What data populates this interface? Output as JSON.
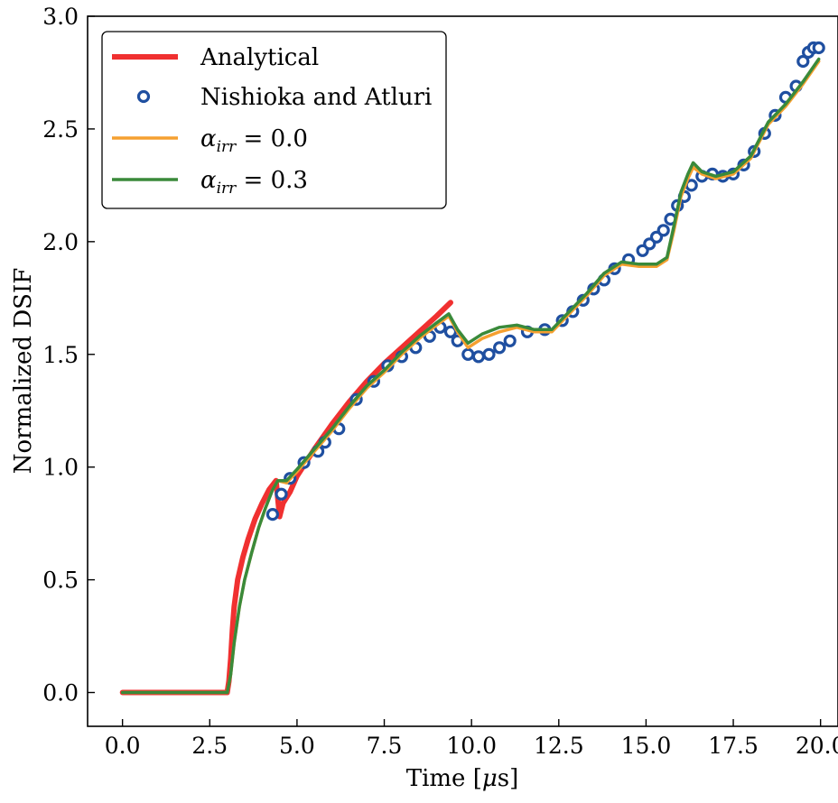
{
  "chart_data": {
    "type": "line",
    "xlabel": "Time [μs]",
    "ylabel": "Normalized DSIF",
    "xlim": [
      -1.0,
      20.5
    ],
    "ylim": [
      -0.15,
      3.0
    ],
    "xticks": [
      "0.0",
      "2.5",
      "5.0",
      "7.5",
      "10.0",
      "12.5",
      "15.0",
      "17.5",
      "20.0"
    ],
    "yticks": [
      "0.0",
      "0.5",
      "1.0",
      "1.5",
      "2.0",
      "2.5",
      "3.0"
    ],
    "legend_position": "top-left",
    "grid": false,
    "series": [
      {
        "name": "Analytical",
        "kind": "line",
        "color": "#f03030",
        "x": [
          0.0,
          3.0,
          3.05,
          3.1,
          3.15,
          3.2,
          3.3,
          3.45,
          3.6,
          3.8,
          4.0,
          4.2,
          4.4,
          4.5,
          4.6,
          4.8,
          5.0,
          5.5,
          6.0,
          6.5,
          7.0,
          7.5,
          8.0,
          8.5,
          9.0,
          9.4
        ],
        "y": [
          0.0,
          0.0,
          0.05,
          0.15,
          0.28,
          0.38,
          0.5,
          0.6,
          0.68,
          0.77,
          0.84,
          0.9,
          0.94,
          0.78,
          0.84,
          0.89,
          0.96,
          1.08,
          1.19,
          1.29,
          1.38,
          1.46,
          1.53,
          1.6,
          1.67,
          1.73
        ]
      },
      {
        "name": "Nishioka and Atluri",
        "kind": "markers",
        "color": "#1f4fa0",
        "x": [
          4.3,
          4.55,
          4.8,
          5.2,
          5.6,
          5.8,
          6.2,
          6.7,
          7.2,
          7.6,
          8.0,
          8.4,
          8.8,
          9.1,
          9.4,
          9.6,
          9.9,
          10.2,
          10.5,
          10.8,
          11.1,
          11.6,
          12.1,
          12.6,
          12.9,
          13.2,
          13.5,
          13.8,
          14.1,
          14.5,
          14.9,
          15.1,
          15.3,
          15.5,
          15.7,
          15.9,
          16.1,
          16.3,
          16.6,
          16.9,
          17.2,
          17.5,
          17.8,
          18.1,
          18.4,
          18.7,
          19.0,
          19.3,
          19.5,
          19.65,
          19.8,
          19.95
        ],
        "y": [
          0.79,
          0.88,
          0.95,
          1.02,
          1.07,
          1.11,
          1.17,
          1.3,
          1.38,
          1.45,
          1.49,
          1.53,
          1.58,
          1.62,
          1.6,
          1.56,
          1.5,
          1.49,
          1.5,
          1.53,
          1.56,
          1.6,
          1.61,
          1.65,
          1.69,
          1.74,
          1.79,
          1.83,
          1.88,
          1.92,
          1.96,
          1.99,
          2.02,
          2.05,
          2.1,
          2.16,
          2.2,
          2.25,
          2.29,
          2.3,
          2.29,
          2.3,
          2.34,
          2.4,
          2.48,
          2.56,
          2.64,
          2.69,
          2.8,
          2.84,
          2.86,
          2.86
        ]
      },
      {
        "name": "α_irr = 0.0",
        "kind": "line",
        "color": "#f5a030",
        "x": [
          0.0,
          3.0,
          3.1,
          3.2,
          3.35,
          3.5,
          3.7,
          3.9,
          4.1,
          4.3,
          4.45,
          4.7,
          5.0,
          5.5,
          6.0,
          6.5,
          7.0,
          7.5,
          8.0,
          8.5,
          9.0,
          9.35,
          9.6,
          9.9,
          10.3,
          10.8,
          11.3,
          11.8,
          12.3,
          12.8,
          13.3,
          13.8,
          14.3,
          14.8,
          15.3,
          15.6,
          15.8,
          16.0,
          16.2,
          16.35,
          16.6,
          17.0,
          17.5,
          18.0,
          18.5,
          19.0,
          19.5,
          19.95
        ],
        "y": [
          0.0,
          0.0,
          0.08,
          0.22,
          0.38,
          0.5,
          0.62,
          0.73,
          0.82,
          0.9,
          0.94,
          0.93,
          0.98,
          1.07,
          1.16,
          1.26,
          1.35,
          1.42,
          1.5,
          1.57,
          1.63,
          1.67,
          1.6,
          1.53,
          1.57,
          1.6,
          1.62,
          1.6,
          1.6,
          1.68,
          1.76,
          1.85,
          1.9,
          1.89,
          1.89,
          1.92,
          2.05,
          2.2,
          2.28,
          2.33,
          2.3,
          2.28,
          2.3,
          2.37,
          2.52,
          2.6,
          2.7,
          2.8
        ]
      },
      {
        "name": "α_irr = 0.3",
        "kind": "line",
        "color": "#3a8a3a",
        "x": [
          0.0,
          3.0,
          3.1,
          3.2,
          3.35,
          3.5,
          3.7,
          3.9,
          4.1,
          4.3,
          4.45,
          4.7,
          5.0,
          5.5,
          6.0,
          6.5,
          7.0,
          7.5,
          8.0,
          8.5,
          9.0,
          9.35,
          9.6,
          9.9,
          10.3,
          10.8,
          11.3,
          11.8,
          12.3,
          12.8,
          13.3,
          13.8,
          14.3,
          14.8,
          15.3,
          15.6,
          15.8,
          16.0,
          16.2,
          16.35,
          16.6,
          17.0,
          17.5,
          18.0,
          18.5,
          19.0,
          19.5,
          19.95
        ],
        "y": [
          0.0,
          0.0,
          0.08,
          0.22,
          0.38,
          0.5,
          0.62,
          0.73,
          0.82,
          0.9,
          0.94,
          0.94,
          0.99,
          1.08,
          1.17,
          1.27,
          1.36,
          1.43,
          1.51,
          1.58,
          1.64,
          1.68,
          1.61,
          1.55,
          1.59,
          1.62,
          1.63,
          1.61,
          1.61,
          1.69,
          1.77,
          1.86,
          1.91,
          1.9,
          1.9,
          1.93,
          2.07,
          2.22,
          2.3,
          2.35,
          2.31,
          2.29,
          2.31,
          2.38,
          2.53,
          2.61,
          2.71,
          2.81
        ]
      }
    ]
  },
  "legend": {
    "analytical": "Analytical",
    "nishioka": "Nishioka and Atluri",
    "alpha0_sym": "α",
    "alpha0_sub": "irr",
    "alpha0_val": " = 0.0",
    "alpha3_sym": "α",
    "alpha3_sub": "irr",
    "alpha3_val": " = 0.3"
  },
  "axes_text": {
    "xlabel_main": "Time [",
    "xlabel_mu": "μ",
    "xlabel_unit": "s]"
  }
}
